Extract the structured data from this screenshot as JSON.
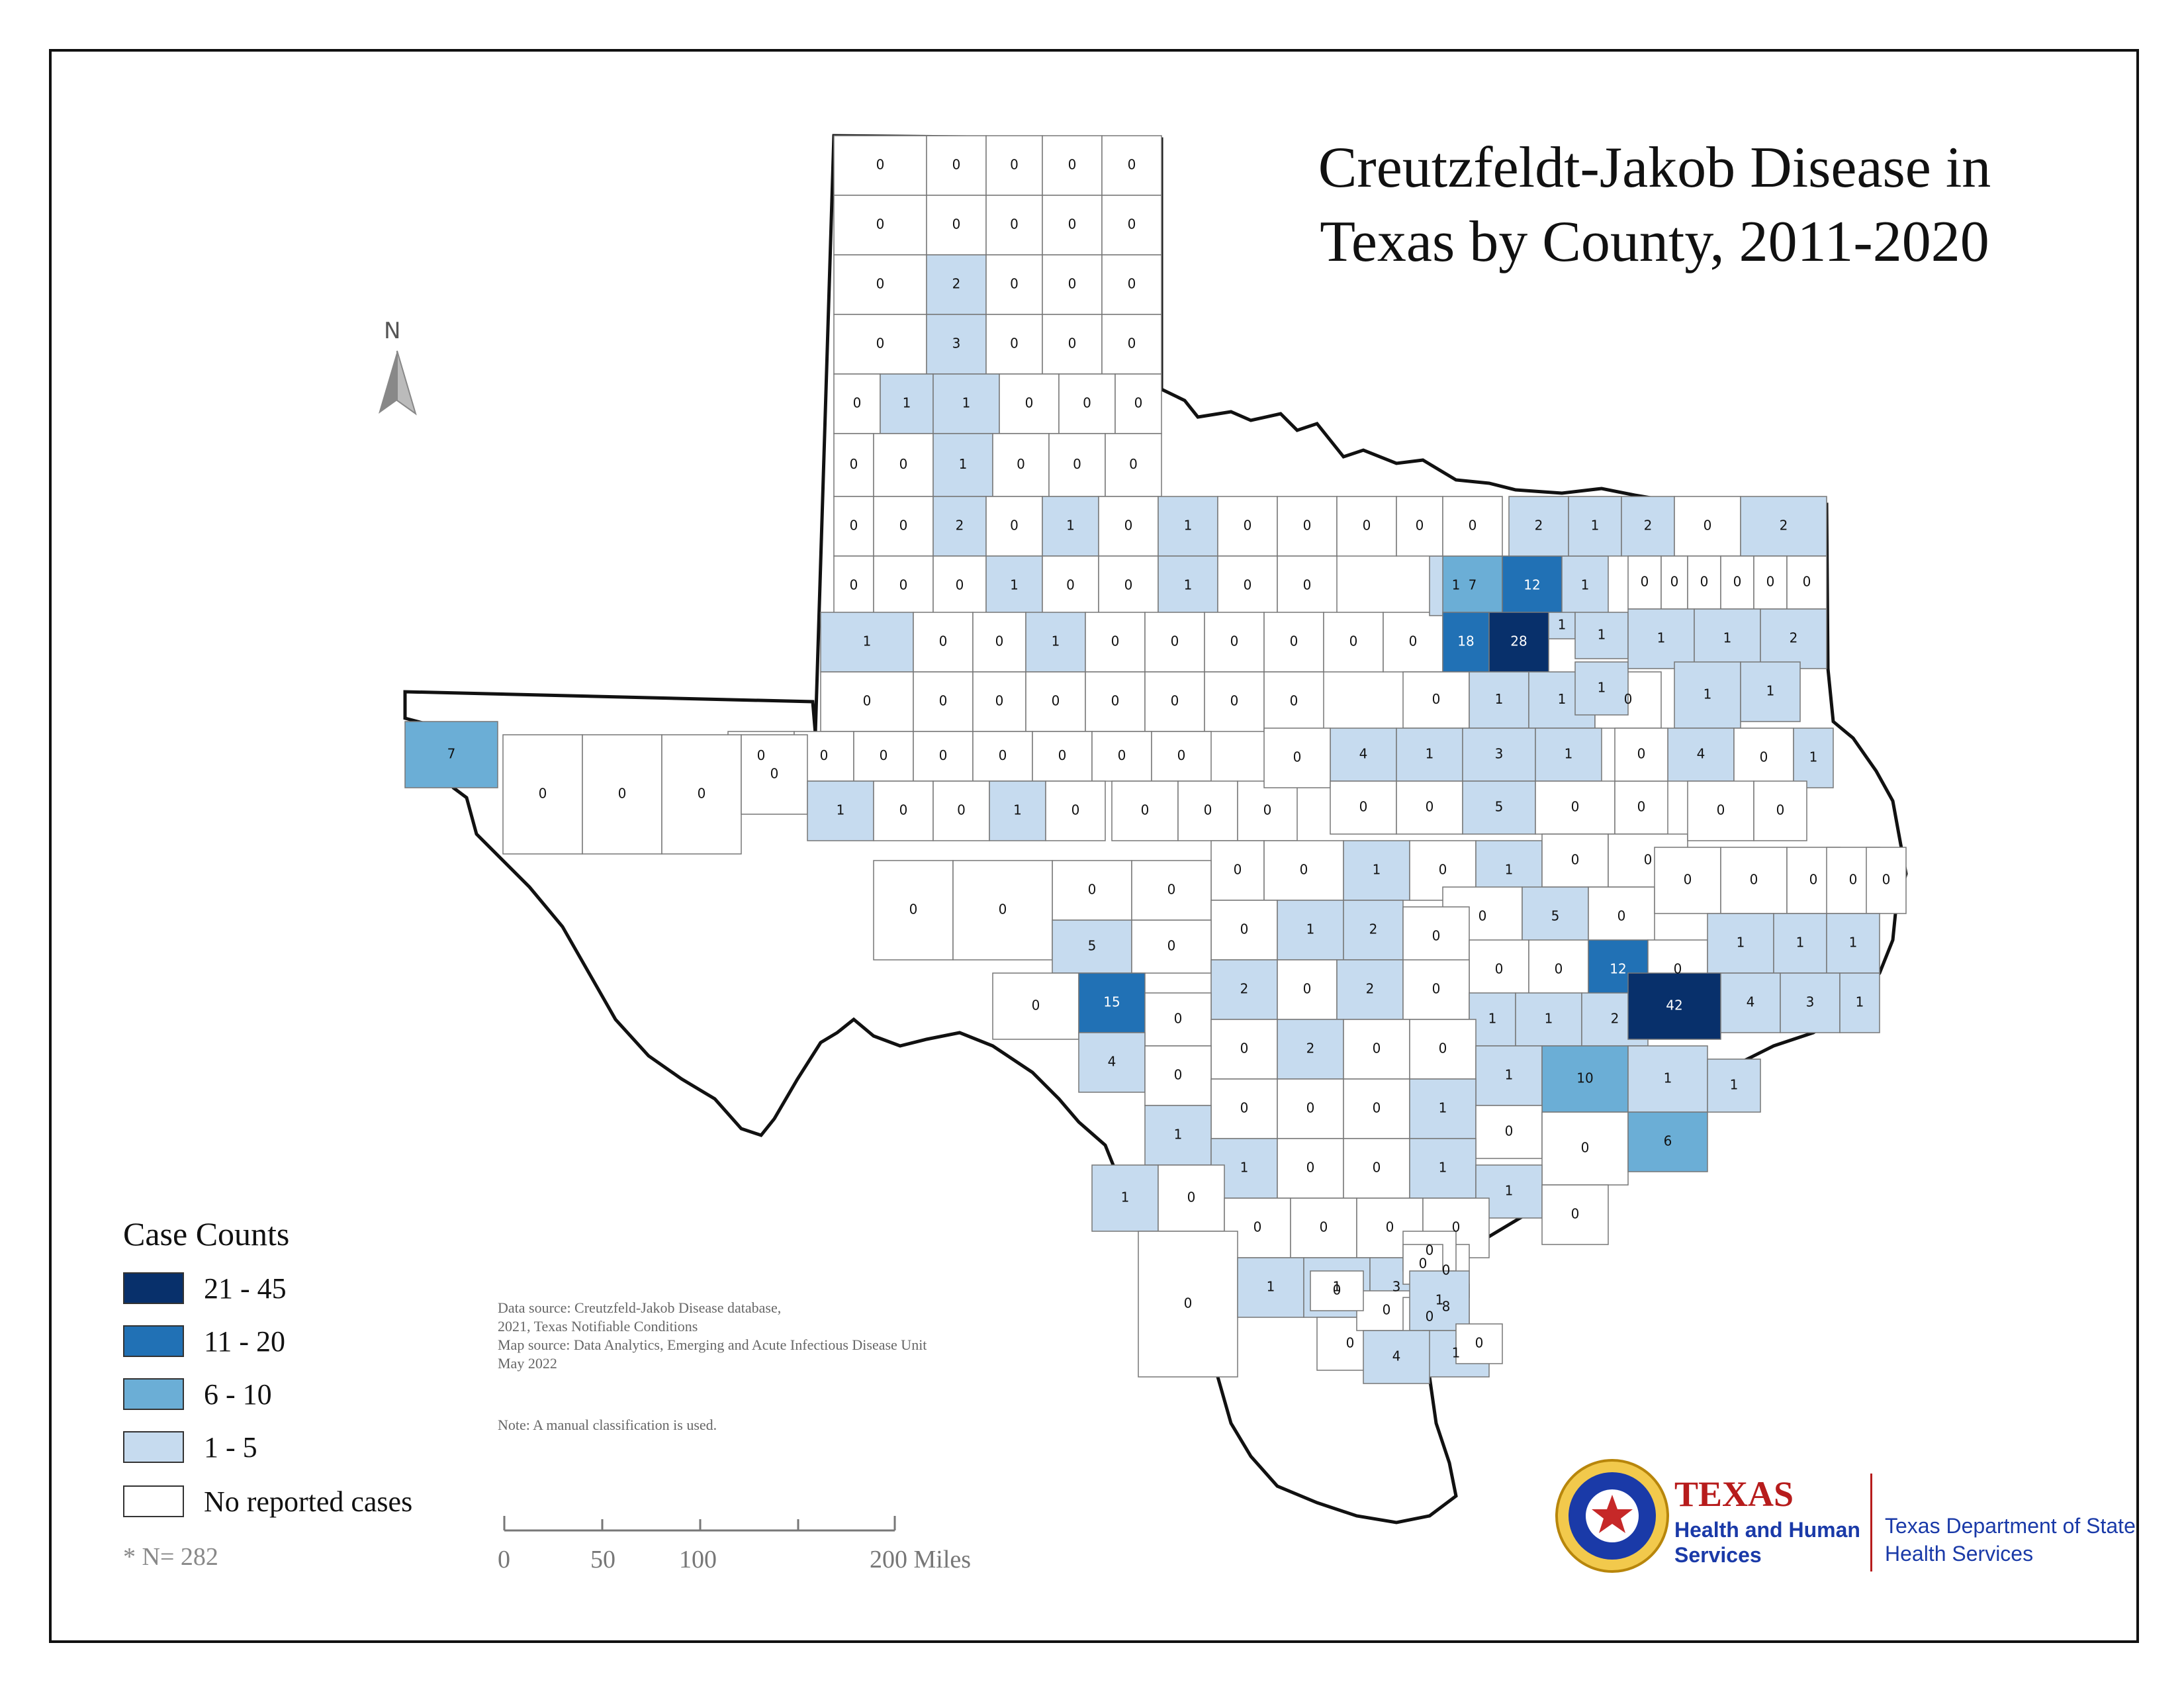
{
  "title": {
    "line1": "Creutzfeldt-Jakob Disease in",
    "line2": "Texas by County, 2011-2020"
  },
  "north_arrow": {
    "label": "N"
  },
  "legend": {
    "title": "Case Counts",
    "classes": [
      {
        "label": "21 - 45",
        "color": "#08306b"
      },
      {
        "label": "11 - 20",
        "color": "#2171b5"
      },
      {
        "label": "6 - 10",
        "color": "#6baed6"
      },
      {
        "label": "1 - 5",
        "color": "#c6dbef"
      },
      {
        "label": "No reported cases",
        "color": "#ffffff"
      }
    ]
  },
  "n_note": "* N= 282",
  "source_text": "Data source: Creutzfeld-Jakob Disease database,\n2021, Texas Notifiable Conditions\nMap source: Data Analytics, Emerging and Acute Infectious Disease Unit\nMay 2022",
  "note_text": "Note:  A manual classification is used.",
  "scale_bar": {
    "labels": [
      "0",
      "50",
      "100",
      "200 Miles"
    ]
  },
  "agency": {
    "name": "TEXAS",
    "subtitle": "Health and Human Services",
    "department": "Texas Department of State Health Services",
    "seal_icon": "texas-star-seal-icon"
  },
  "counties": [
    {
      "id": "c1",
      "value": "0"
    },
    {
      "id": "c2",
      "value": "0"
    },
    {
      "id": "c3",
      "value": "0"
    },
    {
      "id": "c4",
      "value": "0"
    },
    {
      "id": "c5",
      "value": "0"
    },
    {
      "id": "c6",
      "value": "0"
    },
    {
      "id": "c7",
      "value": "0"
    },
    {
      "id": "c8",
      "value": "0"
    },
    {
      "id": "c9",
      "value": "0"
    },
    {
      "id": "c10",
      "value": "0"
    },
    {
      "id": "c11",
      "value": "0"
    },
    {
      "id": "c12",
      "value": "2"
    },
    {
      "id": "c13",
      "value": "0"
    },
    {
      "id": "c14",
      "value": "0"
    },
    {
      "id": "c15",
      "value": "0"
    },
    {
      "id": "c16",
      "value": "0"
    },
    {
      "id": "c17",
      "value": "3"
    },
    {
      "id": "c18",
      "value": "0"
    },
    {
      "id": "c19",
      "value": "0"
    },
    {
      "id": "c20",
      "value": "0"
    },
    {
      "id": "c21",
      "value": "0"
    },
    {
      "id": "c22",
      "value": "1"
    },
    {
      "id": "c23",
      "value": "1"
    },
    {
      "id": "c24",
      "value": "0"
    },
    {
      "id": "c25",
      "value": "0"
    },
    {
      "id": "c26",
      "value": "0"
    },
    {
      "id": "c27",
      "value": "0"
    },
    {
      "id": "c28",
      "value": "0"
    },
    {
      "id": "c29",
      "value": "1"
    },
    {
      "id": "c30",
      "value": "0"
    },
    {
      "id": "c31",
      "value": "0"
    },
    {
      "id": "c32",
      "value": "0"
    },
    {
      "id": "c33",
      "value": "0"
    },
    {
      "id": "c34",
      "value": "0"
    },
    {
      "id": "c35",
      "value": "2"
    },
    {
      "id": "c36",
      "value": "0"
    },
    {
      "id": "c37",
      "value": "1"
    },
    {
      "id": "c38",
      "value": "0"
    },
    {
      "id": "c39",
      "value": "1"
    },
    {
      "id": "c40",
      "value": "0"
    },
    {
      "id": "c41",
      "value": "0"
    },
    {
      "id": "c42",
      "value": "0"
    },
    {
      "id": "c43",
      "value": "0"
    },
    {
      "id": "c44",
      "value": "0"
    },
    {
      "id": "c45",
      "value": "1"
    },
    {
      "id": "c46",
      "value": "0"
    },
    {
      "id": "c47",
      "value": "0"
    },
    {
      "id": "c48",
      "value": "1"
    },
    {
      "id": "c49",
      "value": "0"
    },
    {
      "id": "c50",
      "value": "0"
    },
    {
      "id": "c51",
      "value": "1"
    },
    {
      "id": "c52",
      "value": "0"
    },
    {
      "id": "c53",
      "value": "0"
    },
    {
      "id": "c54",
      "value": "1"
    },
    {
      "id": "c55",
      "value": "0"
    },
    {
      "id": "c56",
      "value": "0"
    },
    {
      "id": "c57",
      "value": "0"
    },
    {
      "id": "c58",
      "value": "0"
    },
    {
      "id": "c59",
      "value": "0"
    },
    {
      "id": "c60",
      "value": "0"
    },
    {
      "id": "c61",
      "value": "0"
    },
    {
      "id": "c62",
      "value": "0"
    },
    {
      "id": "c63",
      "value": "0"
    },
    {
      "id": "c64",
      "value": "0"
    },
    {
      "id": "c65",
      "value": "0"
    },
    {
      "id": "c66",
      "value": "0"
    },
    {
      "id": "c67",
      "value": "0"
    },
    {
      "id": "c68",
      "value": "0"
    },
    {
      "id": "c69",
      "value": "0"
    },
    {
      "id": "c70",
      "value": "0"
    },
    {
      "id": "c71",
      "value": "0"
    },
    {
      "id": "c72",
      "value": "0"
    },
    {
      "id": "c73",
      "value": "0"
    },
    {
      "id": "c74",
      "value": "0"
    },
    {
      "id": "c75",
      "value": "0"
    },
    {
      "id": "c76",
      "value": "0"
    },
    {
      "id": "c77",
      "value": "1"
    },
    {
      "id": "c78",
      "value": "7"
    },
    {
      "id": "c79",
      "value": "12"
    },
    {
      "id": "c80",
      "value": "1"
    },
    {
      "id": "c81",
      "value": "0"
    },
    {
      "id": "c82",
      "value": "0"
    },
    {
      "id": "c83",
      "value": "0"
    },
    {
      "id": "c84",
      "value": "18"
    },
    {
      "id": "c85",
      "value": "28"
    },
    {
      "id": "c86",
      "value": "1"
    },
    {
      "id": "c87",
      "value": "1"
    },
    {
      "id": "c88",
      "value": "2"
    },
    {
      "id": "c89",
      "value": "1"
    },
    {
      "id": "c90",
      "value": "2"
    },
    {
      "id": "c91",
      "value": "0"
    },
    {
      "id": "c92",
      "value": "2"
    },
    {
      "id": "c93",
      "value": "0"
    },
    {
      "id": "c94",
      "value": "0"
    },
    {
      "id": "c95",
      "value": "0"
    },
    {
      "id": "c96",
      "value": "0"
    },
    {
      "id": "c97",
      "value": "0"
    },
    {
      "id": "c98",
      "value": "0"
    },
    {
      "id": "c99",
      "value": "0"
    },
    {
      "id": "c100",
      "value": "1"
    },
    {
      "id": "c101",
      "value": "1"
    },
    {
      "id": "c102",
      "value": "0"
    },
    {
      "id": "c103",
      "value": "1"
    },
    {
      "id": "c104",
      "value": "1"
    },
    {
      "id": "c105",
      "value": "1"
    },
    {
      "id": "c106",
      "value": "2"
    },
    {
      "id": "c107",
      "value": "1"
    },
    {
      "id": "c108",
      "value": "1"
    },
    {
      "id": "c109",
      "value": "4"
    },
    {
      "id": "c110",
      "value": "1"
    },
    {
      "id": "c111",
      "value": "3"
    },
    {
      "id": "c112",
      "value": "1"
    },
    {
      "id": "c113",
      "value": "7"
    },
    {
      "id": "c114",
      "value": "0"
    },
    {
      "id": "c115",
      "value": "0"
    },
    {
      "id": "c116",
      "value": "0"
    },
    {
      "id": "c117",
      "value": "0"
    },
    {
      "id": "c118",
      "value": "1"
    },
    {
      "id": "c119",
      "value": "0"
    },
    {
      "id": "c120",
      "value": "0"
    },
    {
      "id": "c121",
      "value": "1"
    },
    {
      "id": "c122",
      "value": "0"
    },
    {
      "id": "c123",
      "value": "0"
    },
    {
      "id": "c124",
      "value": "0"
    },
    {
      "id": "c125",
      "value": "0"
    },
    {
      "id": "c126",
      "value": "0"
    },
    {
      "id": "c127",
      "value": "0"
    },
    {
      "id": "c128",
      "value": "0"
    },
    {
      "id": "c129",
      "value": "5"
    },
    {
      "id": "c130",
      "value": "0"
    },
    {
      "id": "c131",
      "value": "0"
    },
    {
      "id": "c132",
      "value": "4"
    },
    {
      "id": "c133",
      "value": "0"
    },
    {
      "id": "c134",
      "value": "1"
    },
    {
      "id": "c135",
      "value": "0"
    },
    {
      "id": "c136",
      "value": "0"
    },
    {
      "id": "c137",
      "value": "0"
    },
    {
      "id": "c138",
      "value": "1"
    },
    {
      "id": "c139",
      "value": "0"
    },
    {
      "id": "c140",
      "value": "1"
    },
    {
      "id": "c141",
      "value": "0"
    },
    {
      "id": "c142",
      "value": "0"
    },
    {
      "id": "c143",
      "value": "0"
    },
    {
      "id": "c144",
      "value": "0"
    },
    {
      "id": "c145",
      "value": "0"
    },
    {
      "id": "c146",
      "value": "5"
    },
    {
      "id": "c147",
      "value": "0"
    },
    {
      "id": "c148",
      "value": "0"
    },
    {
      "id": "c149",
      "value": "0"
    },
    {
      "id": "c150",
      "value": "0"
    },
    {
      "id": "c151",
      "value": "0"
    },
    {
      "id": "c152",
      "value": "0"
    },
    {
      "id": "c153",
      "value": "0"
    },
    {
      "id": "c154",
      "value": "0"
    },
    {
      "id": "c155",
      "value": "0"
    },
    {
      "id": "c156",
      "value": "1"
    },
    {
      "id": "c157",
      "value": "0"
    },
    {
      "id": "c158",
      "value": "0"
    },
    {
      "id": "c159",
      "value": "5"
    },
    {
      "id": "c160",
      "value": "0"
    },
    {
      "id": "c161",
      "value": "2"
    },
    {
      "id": "c162",
      "value": "0"
    },
    {
      "id": "c163",
      "value": "0"
    },
    {
      "id": "c164",
      "value": "0"
    },
    {
      "id": "c165",
      "value": "12"
    },
    {
      "id": "c166",
      "value": "0"
    },
    {
      "id": "c167",
      "value": "1"
    },
    {
      "id": "c168",
      "value": "1"
    },
    {
      "id": "c169",
      "value": "1"
    },
    {
      "id": "c170",
      "value": "2"
    },
    {
      "id": "c171",
      "value": "0"
    },
    {
      "id": "c172",
      "value": "2"
    },
    {
      "id": "c173",
      "value": "0"
    },
    {
      "id": "c174",
      "value": "1"
    },
    {
      "id": "c175",
      "value": "1"
    },
    {
      "id": "c176",
      "value": "2"
    },
    {
      "id": "c177",
      "value": "42"
    },
    {
      "id": "c178",
      "value": "4"
    },
    {
      "id": "c179",
      "value": "3"
    },
    {
      "id": "c180",
      "value": "1"
    },
    {
      "id": "c181",
      "value": "0"
    },
    {
      "id": "c182",
      "value": "15"
    },
    {
      "id": "c183",
      "value": "0"
    },
    {
      "id": "c184",
      "value": "0"
    },
    {
      "id": "c185",
      "value": "2"
    },
    {
      "id": "c186",
      "value": "0"
    },
    {
      "id": "c187",
      "value": "0"
    },
    {
      "id": "c188",
      "value": "1"
    },
    {
      "id": "c189",
      "value": "10"
    },
    {
      "id": "c190",
      "value": "1"
    },
    {
      "id": "c191",
      "value": "1"
    },
    {
      "id": "c192",
      "value": "4"
    },
    {
      "id": "c193",
      "value": "0"
    },
    {
      "id": "c194",
      "value": "0"
    },
    {
      "id": "c195",
      "value": "0"
    },
    {
      "id": "c196",
      "value": "0"
    },
    {
      "id": "c197",
      "value": "1"
    },
    {
      "id": "c198",
      "value": "0"
    },
    {
      "id": "c199",
      "value": "0"
    },
    {
      "id": "c200",
      "value": "6"
    },
    {
      "id": "c201",
      "value": "1"
    },
    {
      "id": "c202",
      "value": "1"
    },
    {
      "id": "c203",
      "value": "0"
    },
    {
      "id": "c204",
      "value": "0"
    },
    {
      "id": "c205",
      "value": "1"
    },
    {
      "id": "c206",
      "value": "1"
    },
    {
      "id": "c207",
      "value": "0"
    },
    {
      "id": "c208",
      "value": "1"
    },
    {
      "id": "c209",
      "value": "0"
    },
    {
      "id": "c210",
      "value": "0"
    },
    {
      "id": "c211",
      "value": "0"
    },
    {
      "id": "c212",
      "value": "0"
    },
    {
      "id": "c213",
      "value": "0"
    },
    {
      "id": "c214",
      "value": "0"
    },
    {
      "id": "c215",
      "value": "1"
    },
    {
      "id": "c216",
      "value": "1"
    },
    {
      "id": "c217",
      "value": "3"
    },
    {
      "id": "c218",
      "value": "0"
    },
    {
      "id": "c219",
      "value": "0"
    },
    {
      "id": "c220",
      "value": "8"
    },
    {
      "id": "c221",
      "value": "0"
    },
    {
      "id": "c222",
      "value": "0"
    },
    {
      "id": "c223",
      "value": "0"
    },
    {
      "id": "c224",
      "value": "0"
    },
    {
      "id": "c225",
      "value": "0"
    },
    {
      "id": "c226",
      "value": "1"
    },
    {
      "id": "c227",
      "value": "1"
    },
    {
      "id": "c228",
      "value": "0"
    },
    {
      "id": "c229",
      "value": "4"
    }
  ]
}
